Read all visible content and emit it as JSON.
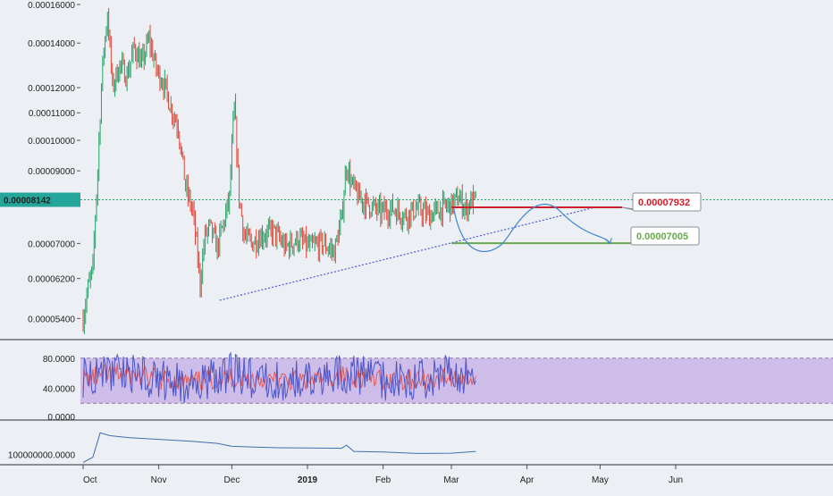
{
  "chart_data": [
    {
      "type": "line",
      "name_role": "price-panel",
      "title": "",
      "y_scale": "log",
      "ylim": [
        5.05e-05,
        0.0001615
      ],
      "y_ticks": [
        "0.00016000",
        "0.00014000",
        "0.00012000",
        "0.00011000",
        "0.00010000",
        "0.00009000",
        "0.00007000",
        "0.00006200",
        "0.00005400"
      ],
      "x_ticks": [
        "Oct",
        "Nov",
        "Dec",
        "2019",
        "Feb",
        "Mar",
        "Apr",
        "May",
        "Jun"
      ],
      "current_price": "0.00008142",
      "series": [
        {
          "role": "candles",
          "x": [
            "2018-10-01",
            "2018-10-03",
            "2018-10-05",
            "2018-10-07",
            "2018-10-09",
            "2018-10-11",
            "2018-10-13",
            "2018-10-16",
            "2018-10-19",
            "2018-10-22",
            "2018-10-25",
            "2018-10-28",
            "2018-10-31",
            "2018-11-03",
            "2018-11-06",
            "2018-11-09",
            "2018-11-12",
            "2018-11-15",
            "2018-11-18",
            "2018-11-20",
            "2018-11-22",
            "2018-11-25",
            "2018-11-28",
            "2018-11-30",
            "2018-12-02",
            "2018-12-04",
            "2018-12-06",
            "2018-12-09",
            "2018-12-13",
            "2018-12-18",
            "2018-12-23",
            "2018-12-28",
            "2019-01-02",
            "2019-01-07",
            "2019-01-12",
            "2019-01-15",
            "2019-01-17",
            "2019-01-19",
            "2019-01-22",
            "2019-01-26",
            "2019-01-31",
            "2019-02-05",
            "2019-02-10",
            "2019-02-15",
            "2019-02-20",
            "2019-02-25",
            "2019-03-01",
            "2019-03-04",
            "2019-03-07",
            "2019-03-09",
            "2019-03-11"
          ],
          "y": [
            5.4e-05,
            6e-05,
            6.4e-05,
            9e-05,
            0.00013,
            0.000155,
            0.00012,
            0.00013,
            0.000125,
            0.000138,
            0.00013,
            0.000142,
            0.000128,
            0.000122,
            0.000112,
            0.000105,
            8.5e-05,
            7.8e-05,
            6.1e-05,
            7.2e-05,
            7.4e-05,
            6.9e-05,
            7.6e-05,
            8.2e-05,
            0.000112,
            8.2e-05,
            7.2e-05,
            7e-05,
            7.2e-05,
            7.3e-05,
            6.9e-05,
            7.1e-05,
            6.9e-05,
            7e-05,
            6.8e-05,
            7.6e-05,
            9.2e-05,
            8.6e-05,
            8.2e-05,
            8e-05,
            7.8e-05,
            7.9e-05,
            7.7e-05,
            7.9e-05,
            7.7e-05,
            7.9e-05,
            8e-05,
            8.2e-05,
            7.9e-05,
            8.1e-05,
            8.14e-05
          ]
        }
      ],
      "levels": [
        {
          "label": "0.00007932",
          "value": 7.932e-05,
          "color": "#cc1f2b"
        },
        {
          "label": "0.00007005",
          "value": 7.005e-05,
          "color": "#6aa84f"
        }
      ],
      "trendline": {
        "x": [
          "2018-11-26",
          "2019-04-30"
        ],
        "y": [
          5.75e-05,
          7.95e-05
        ],
        "style": "dotted",
        "color": "#4a5ad6"
      },
      "projection": {
        "x": [
          "2019-03-02",
          "2019-03-22",
          "2019-04-15",
          "2019-05-05"
        ],
        "y": [
          7.9e-05,
          7e-05,
          7.8e-05,
          7e-05
        ],
        "color": "#3f86d0"
      }
    },
    {
      "type": "line",
      "name_role": "rsi-panel",
      "ylim": [
        0,
        100
      ],
      "y_ticks": [
        "80.0000",
        "40.0000",
        "0.0000"
      ],
      "band": [
        20,
        80
      ],
      "band_color": "#c9b3e6",
      "series": [
        {
          "role": "rsi",
          "color": "#4a55c8",
          "x": [
            "2018-10-01",
            "2018-10-15",
            "2018-11-01",
            "2018-11-15",
            "2018-12-01",
            "2018-12-15",
            "2019-01-01",
            "2019-01-15",
            "2019-02-01",
            "2019-02-15",
            "2019-03-01",
            "2019-03-11"
          ],
          "y": [
            55,
            65,
            52,
            45,
            60,
            48,
            50,
            62,
            50,
            52,
            58,
            55
          ]
        },
        {
          "role": "rsi-signal",
          "color": "#e05a5a",
          "x": [
            "2018-10-01",
            "2018-10-15",
            "2018-11-01",
            "2018-11-15",
            "2018-12-01",
            "2018-12-15",
            "2019-01-01",
            "2019-01-15",
            "2019-02-01",
            "2019-02-15",
            "2019-03-01",
            "2019-03-11"
          ],
          "y": [
            52,
            60,
            52,
            48,
            55,
            50,
            50,
            57,
            51,
            52,
            55,
            54
          ]
        }
      ]
    },
    {
      "type": "line",
      "name_role": "obv-panel",
      "y_ticks": [
        "100000000.0000"
      ],
      "ylim": [
        70000000,
        210000000
      ],
      "series": [
        {
          "role": "obv",
          "color": "#3d6fb0",
          "x": [
            "2018-10-01",
            "2018-10-05",
            "2018-10-08",
            "2018-10-12",
            "2018-10-20",
            "2018-11-01",
            "2018-11-15",
            "2018-11-25",
            "2018-12-01",
            "2018-12-10",
            "2018-12-20",
            "2019-01-01",
            "2019-01-15",
            "2019-01-17",
            "2019-01-20",
            "2019-02-01",
            "2019-02-15",
            "2019-03-01",
            "2019-03-11"
          ],
          "y": [
            72000000,
            90000000,
            175000000,
            165000000,
            158000000,
            152000000,
            145000000,
            138000000,
            128000000,
            125000000,
            123000000,
            122000000,
            121000000,
            132000000,
            110000000,
            108000000,
            103000000,
            104000000,
            110000000
          ]
        }
      ]
    }
  ]
}
